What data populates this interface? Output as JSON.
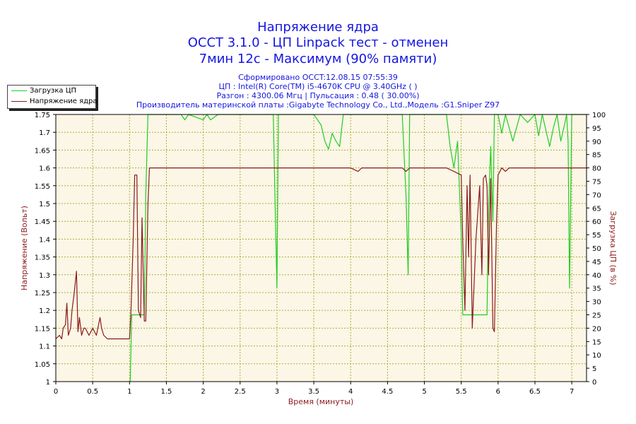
{
  "header": {
    "title_line1": "Напряжение ядра",
    "title_line2": "OCCT 3.1.0 - ЦП Linpack тест - отменен",
    "title_line3": "7мин 12с - Максимум (90% памяти)",
    "info_line1": "Сформировано OCCT:12.08.15 07:55:39",
    "info_line2": "ЦП : Intel(R) Core(TM) i5-4670K CPU @ 3.40GHz (  )",
    "info_line3": "Разгон : 4300.06 Мгц | Пульсация : 0.48 ( 30.00%)",
    "info_line4": "Производитель материнской платы :Gigabyte Technology Co., Ltd.,Модель :G1.Sniper Z97"
  },
  "legend": {
    "items": [
      {
        "label": "Загрузка ЦП",
        "color": "#22cc22"
      },
      {
        "label": "Напряжение ядра",
        "color": "#8b1a1a"
      }
    ]
  },
  "colors": {
    "plot_bg": "#fbf6e6",
    "grid": "#a8b03a",
    "title": "#1515e0",
    "axis_label": "#8b1a1a",
    "cpu_load": "#22cc22",
    "voltage": "#8b1a1a"
  },
  "chart_data": {
    "type": "line",
    "xlabel": "Время (минуты)",
    "ylabel": "Напряжение (Вольт)",
    "y2label": "Загрузка ЦП (в %)",
    "xlim": [
      0,
      7.2
    ],
    "ylim": [
      1.0,
      1.75
    ],
    "y2lim": [
      0,
      100
    ],
    "x_ticks": [
      "0",
      "0.5",
      "1",
      "1.5",
      "2",
      "2.5",
      "3",
      "3.5",
      "4",
      "4.5",
      "5",
      "5.5",
      "6",
      "6.5",
      "7"
    ],
    "y_ticks": [
      "1",
      "1.05",
      "1.1",
      "1.15",
      "1.2",
      "1.25",
      "1.3",
      "1.35",
      "1.4",
      "1.45",
      "1.5",
      "1.55",
      "1.6",
      "1.65",
      "1.7",
      "1.75"
    ],
    "y2_ticks": [
      "0",
      "5",
      "10",
      "15",
      "20",
      "25",
      "30",
      "35",
      "40",
      "45",
      "50",
      "55",
      "60",
      "65",
      "70",
      "75",
      "80",
      "85",
      "90",
      "95",
      "100"
    ],
    "grid": true,
    "legend_position": "top-left",
    "series": [
      {
        "name": "Загрузка ЦП",
        "axis": "right",
        "x": [
          0,
          1.0,
          1.01,
          1.03,
          1.2,
          1.22,
          1.25,
          1.28,
          1.3,
          1.5,
          1.7,
          1.75,
          1.8,
          2.0,
          2.05,
          2.1,
          2.2,
          2.5,
          2.8,
          2.9,
          2.95,
          2.98,
          3.0,
          3.02,
          3.1,
          3.3,
          3.5,
          3.6,
          3.65,
          3.7,
          3.75,
          3.8,
          3.85,
          3.9,
          4.0,
          4.5,
          4.7,
          4.75,
          4.78,
          4.8,
          4.85,
          4.9,
          5.3,
          5.35,
          5.4,
          5.45,
          5.5,
          5.52,
          5.55,
          5.85,
          5.87,
          5.9,
          5.93,
          5.95,
          6.0,
          6.05,
          6.1,
          6.2,
          6.3,
          6.4,
          6.5,
          6.55,
          6.6,
          6.7,
          6.75,
          6.8,
          6.85,
          6.9,
          6.93,
          6.95,
          6.97,
          7.0,
          7.03,
          7.05,
          7.1,
          7.2
        ],
        "values": [
          null,
          null,
          0,
          25,
          25,
          70,
          100,
          100,
          100,
          100,
          100,
          98,
          100,
          98,
          100,
          98,
          100,
          100,
          100,
          100,
          100,
          60,
          35,
          100,
          100,
          100,
          100,
          96,
          90,
          87,
          93,
          90,
          88,
          100,
          100,
          100,
          100,
          70,
          40,
          100,
          100,
          100,
          100,
          88,
          80,
          90,
          55,
          25,
          25,
          25,
          65,
          88,
          60,
          100,
          100,
          93,
          100,
          90,
          100,
          97,
          100,
          92,
          100,
          88,
          95,
          100,
          90,
          96,
          100,
          90,
          35,
          100,
          100,
          100,
          100,
          100
        ]
      },
      {
        "name": "Напряжение ядра",
        "axis": "left",
        "x": [
          0,
          0.05,
          0.08,
          0.1,
          0.13,
          0.15,
          0.17,
          0.2,
          0.22,
          0.25,
          0.28,
          0.3,
          0.32,
          0.35,
          0.38,
          0.4,
          0.45,
          0.5,
          0.55,
          0.58,
          0.6,
          0.62,
          0.65,
          0.7,
          0.75,
          0.8,
          0.9,
          1.0,
          1.02,
          1.05,
          1.07,
          1.1,
          1.12,
          1.15,
          1.17,
          1.2,
          1.22,
          1.25,
          1.27,
          1.3,
          1.5,
          2.0,
          3.0,
          3.5,
          4.0,
          4.1,
          4.15,
          4.2,
          4.7,
          4.75,
          4.8,
          5.3,
          5.4,
          5.5,
          5.52,
          5.55,
          5.58,
          5.6,
          5.62,
          5.65,
          5.7,
          5.75,
          5.78,
          5.8,
          5.83,
          5.85,
          5.87,
          5.9,
          5.93,
          5.95,
          5.98,
          6.0,
          6.05,
          6.1,
          6.15,
          6.2,
          6.3,
          6.5,
          7.0,
          7.2
        ],
        "values": [
          1.12,
          1.13,
          1.12,
          1.15,
          1.16,
          1.22,
          1.13,
          1.15,
          1.2,
          1.25,
          1.31,
          1.14,
          1.18,
          1.13,
          1.15,
          1.15,
          1.13,
          1.15,
          1.13,
          1.16,
          1.18,
          1.15,
          1.13,
          1.12,
          1.12,
          1.12,
          1.12,
          1.12,
          1.2,
          1.4,
          1.58,
          1.58,
          1.2,
          1.18,
          1.46,
          1.17,
          1.17,
          1.5,
          1.6,
          1.6,
          1.6,
          1.6,
          1.6,
          1.6,
          1.6,
          1.59,
          1.6,
          1.6,
          1.6,
          1.59,
          1.6,
          1.6,
          1.59,
          1.58,
          1.4,
          1.2,
          1.55,
          1.35,
          1.58,
          1.15,
          1.4,
          1.55,
          1.3,
          1.57,
          1.58,
          1.55,
          1.3,
          1.57,
          1.15,
          1.14,
          1.45,
          1.58,
          1.6,
          1.59,
          1.6,
          1.6,
          1.6,
          1.6,
          1.6,
          1.6
        ]
      }
    ]
  }
}
